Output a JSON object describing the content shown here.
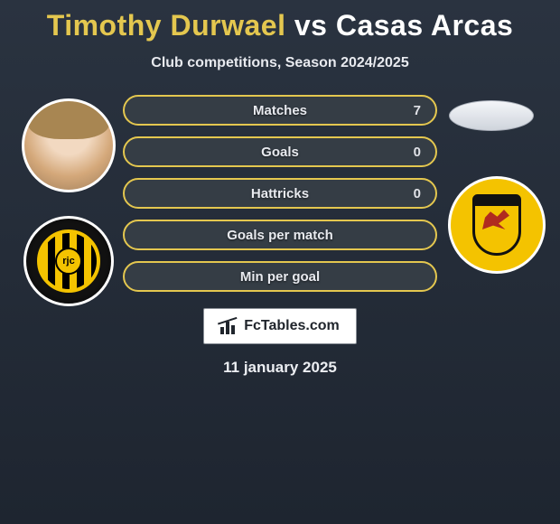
{
  "title": {
    "player1": "Timothy Durwael",
    "vs": "vs",
    "player2": "Casas Arcas"
  },
  "subtitle": "Club competitions, Season 2024/2025",
  "colors": {
    "p1_accent": "#e4c74f",
    "p2_border": "#7a838c",
    "pill_text": "#e8eaef"
  },
  "stats": [
    {
      "label": "Matches",
      "value_right": "7"
    },
    {
      "label": "Goals",
      "value_right": "0"
    },
    {
      "label": "Hattricks",
      "value_right": "0"
    },
    {
      "label": "Goals per match",
      "value_right": ""
    },
    {
      "label": "Min per goal",
      "value_right": ""
    }
  ],
  "attribution": "FcTables.com",
  "date": "11 january 2025",
  "badges": {
    "left_center_text": "rjc"
  }
}
